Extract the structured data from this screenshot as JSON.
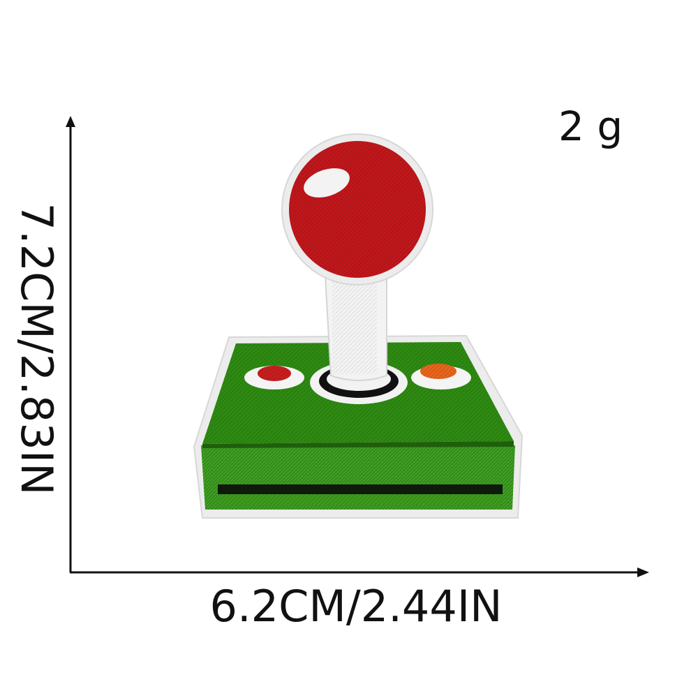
{
  "product": {
    "weight": "2 g",
    "width_label": "6.2CM/2.44IN",
    "height_label": "7.2CM/2.83IN"
  },
  "colors": {
    "ball_red": "#c0171b",
    "base_green": "#2e8a12",
    "stick_white": "#f2f2f2",
    "button_red": "#c81e1e",
    "button_orange": "#e8651c",
    "border_white": "#ececec",
    "axis_black": "#111111"
  },
  "icons": {
    "patch": "joystick-patch-icon"
  }
}
